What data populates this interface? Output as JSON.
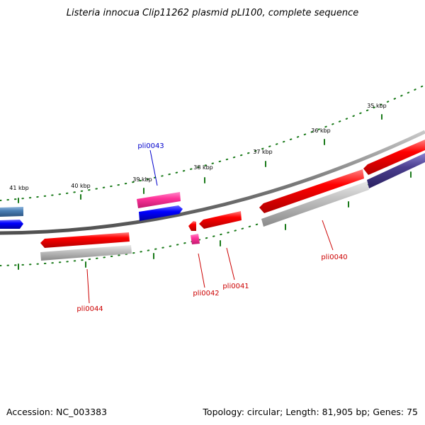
{
  "map": {
    "title": "Listeria innocua Clip11262 plasmid pLI100, complete sequence",
    "accession": "Accession: NC_003383",
    "summary": "Topology: circular; Length: 81,905 bp; Genes: 75",
    "kbp_labels": [
      "41 kbp",
      "40 kbp",
      "39 kbp",
      "38 kbp",
      "37 kbp",
      "36 kbp",
      "35 kbp"
    ],
    "gene_labels": {
      "pli0043": "pli0043",
      "pli0044": "pli0044",
      "pli0042": "pli0042",
      "pli0041": "pli0041",
      "pli0040": "pli0040"
    },
    "colors": {
      "forward_gene": "#ff0000",
      "reverse_gene": "#ff0000",
      "gray_feature": "#c0c0c0",
      "blue_feature": "#0000ff",
      "steel_feature": "#4a7fb5",
      "pink_feature": "#ff3399",
      "navy_feature": "#4b3f8f",
      "backbone": "#808080",
      "ticks": "#1a7a1a",
      "label_red": "#cc0000",
      "label_blue": "#0000cc"
    }
  }
}
